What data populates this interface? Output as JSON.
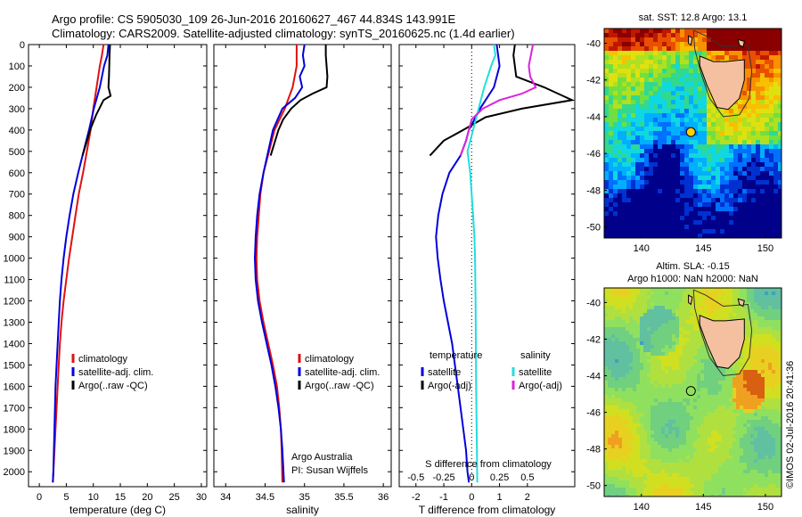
{
  "header": {
    "line1": "Argo profile: CS 5905030_109 26-Jun-2016 20160627_467 44.834S 143.991E",
    "line2": "Climatology: CARS2009. Satellite-adjusted climatology: synTS_20160625.nc (1.4d earlier)"
  },
  "chart_data": [
    {
      "type": "line",
      "id": "temperature",
      "xlabel": "temperature (deg C)",
      "ylabel": "",
      "xlim": [
        -2,
        31
      ],
      "ylim": [
        2070,
        0
      ],
      "xticks": [
        0,
        5,
        10,
        15,
        20,
        25,
        30
      ],
      "yticks": [
        0,
        100,
        200,
        300,
        400,
        500,
        600,
        700,
        800,
        900,
        1000,
        1100,
        1200,
        1300,
        1400,
        1500,
        1600,
        1700,
        1800,
        1900,
        2000
      ],
      "legend": [
        "climatology",
        "satellite-adj. clim.",
        "Argo(..raw -QC)"
      ],
      "series": [
        {
          "name": "climatology",
          "color": "#e01010",
          "x": [
            11.9,
            11.6,
            11.2,
            10.6,
            10.0,
            9.5,
            8.8,
            8.1,
            7.3,
            6.7,
            6.1,
            5.5,
            5.0,
            4.5,
            4.1,
            3.8,
            3.6,
            3.4,
            3.2,
            3.0,
            2.9,
            2.8,
            2.7,
            2.6,
            2.5
          ],
          "y": [
            0,
            50,
            100,
            200,
            300,
            400,
            500,
            600,
            700,
            800,
            900,
            1000,
            1100,
            1200,
            1300,
            1400,
            1500,
            1600,
            1700,
            1800,
            1850,
            1900,
            1950,
            2000,
            2050
          ]
        },
        {
          "name": "satellite-adj. clim.",
          "color": "#0000dd",
          "x": [
            12.8,
            12.6,
            12.0,
            11.2,
            10.1,
            9.2,
            8.2,
            7.2,
            6.3,
            5.6,
            5.0,
            4.5,
            4.1,
            3.8,
            3.6,
            3.4,
            3.2,
            3.0,
            2.9,
            2.8,
            2.7,
            2.6,
            2.5
          ],
          "y": [
            0,
            50,
            100,
            200,
            300,
            400,
            500,
            600,
            700,
            800,
            900,
            1000,
            1100,
            1200,
            1300,
            1400,
            1500,
            1600,
            1700,
            1800,
            1900,
            2000,
            2050
          ]
        },
        {
          "name": "Argo(..raw -QC)",
          "color": "#000000",
          "x": [
            13.1,
            13.0,
            12.9,
            12.8,
            13.2,
            11.9,
            10.5,
            9.4,
            8.6,
            8.0
          ],
          "y": [
            0,
            50,
            150,
            200,
            240,
            260,
            330,
            400,
            470,
            520
          ]
        }
      ]
    },
    {
      "type": "line",
      "id": "salinity",
      "xlabel": "salinity",
      "ylabel": "",
      "xlim": [
        33.85,
        36.1
      ],
      "ylim": [
        2070,
        0
      ],
      "xticks": [
        34,
        34.5,
        35,
        35.5,
        36
      ],
      "legend": [
        "climatology",
        "satellite-adj. clim.",
        "Argo(..raw -QC)"
      ],
      "notes": [
        "Argo Australia",
        "PI: Susan Wijffels"
      ],
      "series": [
        {
          "name": "climatology",
          "color": "#e01010",
          "x": [
            34.9,
            34.9,
            34.85,
            34.75,
            34.62,
            34.55,
            34.48,
            34.44,
            34.42,
            34.4,
            34.39,
            34.4,
            34.43,
            34.48,
            34.54,
            34.6,
            34.65,
            34.68,
            34.7,
            34.71,
            34.72
          ],
          "y": [
            0,
            100,
            200,
            300,
            400,
            500,
            600,
            700,
            800,
            900,
            1000,
            1100,
            1200,
            1300,
            1400,
            1500,
            1600,
            1700,
            1800,
            1900,
            2050
          ]
        },
        {
          "name": "satellite-adj. clim.",
          "color": "#0000dd",
          "x": [
            35.0,
            34.98,
            35.0,
            34.94,
            34.97,
            34.88,
            34.72,
            34.6,
            34.54,
            34.48,
            34.43,
            34.4,
            34.38,
            34.37,
            34.38,
            34.41,
            34.46,
            34.52,
            34.58,
            34.63,
            34.67,
            34.7,
            34.72,
            34.74
          ],
          "y": [
            0,
            50,
            100,
            150,
            200,
            250,
            300,
            400,
            500,
            600,
            700,
            800,
            900,
            1000,
            1100,
            1200,
            1300,
            1400,
            1500,
            1600,
            1700,
            1800,
            1900,
            2050
          ]
        },
        {
          "name": "Argo(..raw -QC)",
          "color": "#000000",
          "x": [
            35.27,
            35.27,
            35.28,
            35.29,
            35.28,
            35.1,
            34.95,
            34.83,
            34.73,
            34.67,
            34.62,
            34.57
          ],
          "y": [
            0,
            50,
            100,
            150,
            200,
            230,
            260,
            300,
            350,
            400,
            460,
            520
          ]
        }
      ]
    },
    {
      "type": "line",
      "id": "difference",
      "xlabel": "T difference from climatology",
      "xlabel2": "S difference from climatology",
      "xlim": [
        -2.6,
        3.7
      ],
      "ylim": [
        2070,
        0
      ],
      "xticks": [
        -2,
        -1,
        0,
        1,
        2
      ],
      "xticks_labels": [
        "-2",
        "-1",
        "0",
        "1",
        "2"
      ],
      "s_ticks": [
        -0.5,
        -0.25,
        0,
        0.25,
        0.5
      ],
      "s_ticks_labels": [
        "-0.5",
        "-0.25",
        "0",
        "0.25",
        "0.5"
      ],
      "legend_headers": [
        "temperature",
        "salinity"
      ],
      "legend": [
        "satellite",
        "Argo(-adj)",
        "satellite",
        "Argo(-adj)"
      ],
      "series": [
        {
          "name": "satellite",
          "color": "#0000dd",
          "x": [
            0.9,
            1.0,
            0.8,
            0.3,
            -0.1,
            -0.2,
            -0.4,
            -0.8,
            -1.05,
            -1.2,
            -1.28,
            -1.22,
            -1.12,
            -1.0,
            -0.85,
            -0.7,
            -0.6,
            -0.5,
            -0.4,
            -0.3,
            -0.2,
            -0.15,
            -0.1
          ],
          "y": [
            0,
            100,
            200,
            300,
            400,
            450,
            520,
            600,
            700,
            800,
            900,
            1000,
            1100,
            1200,
            1300,
            1400,
            1500,
            1600,
            1700,
            1800,
            1900,
            2000,
            2050
          ]
        },
        {
          "name": "Argo(-adj)",
          "color": "#000000",
          "x": [
            1.55,
            1.5,
            1.6,
            2.6,
            3.6,
            1.8,
            0.5,
            -0.3,
            -1.0,
            -1.5
          ],
          "y": [
            0,
            50,
            150,
            200,
            260,
            300,
            340,
            400,
            450,
            520
          ]
        },
        {
          "name": "salinity satellite",
          "color": "#22dddd",
          "x": [
            0.8,
            0.85,
            0.7,
            0.45,
            0.25,
            0.05,
            -0.15,
            -0.05,
            0.0,
            0.05,
            0.1,
            0.12,
            0.14,
            0.15,
            0.16,
            0.17,
            0.18,
            0.19,
            0.2
          ],
          "y": [
            0,
            50,
            100,
            200,
            300,
            400,
            500,
            600,
            700,
            800,
            900,
            1000,
            1200,
            1400,
            1600,
            1700,
            1800,
            1900,
            2050
          ]
        },
        {
          "name": "salinity Argo(-adj)",
          "color": "#dd22dd",
          "x": [
            2.2,
            2.05,
            2.1,
            2.3,
            1.8,
            1.0,
            0.4,
            0.0,
            -0.2,
            -0.4
          ],
          "y": [
            0,
            100,
            150,
            200,
            230,
            260,
            300,
            350,
            450,
            520
          ]
        }
      ]
    },
    {
      "type": "heatmap",
      "id": "sst-map",
      "title": "sat. SST: 12.8  Argo: 13.1",
      "xticks": [
        140,
        145,
        150
      ],
      "yticks": [
        -40,
        -42,
        -44,
        -46,
        -48,
        -50
      ],
      "xlim": [
        137,
        151.3
      ],
      "ylim": [
        -39.2,
        -50.6
      ],
      "marker": {
        "lon": 143.991,
        "lat": -44.834,
        "fill": "#ffd000"
      }
    },
    {
      "type": "heatmap",
      "id": "sla-map",
      "title": "Altim. SLA: -0.15",
      "subtitle": "Argo h1000: NaN h2000: NaN",
      "xticks": [
        140,
        145,
        150
      ],
      "yticks": [
        -40,
        -42,
        -44,
        -46,
        -48,
        -50
      ],
      "xlim": [
        137,
        151.3
      ],
      "ylim": [
        -39.2,
        -50.6
      ],
      "marker": {
        "lon": 143.991,
        "lat": -44.834,
        "fill": "none"
      }
    }
  ],
  "footer": {
    "stamp": "©IMOS 02-Jul-2016 20:41:36"
  }
}
